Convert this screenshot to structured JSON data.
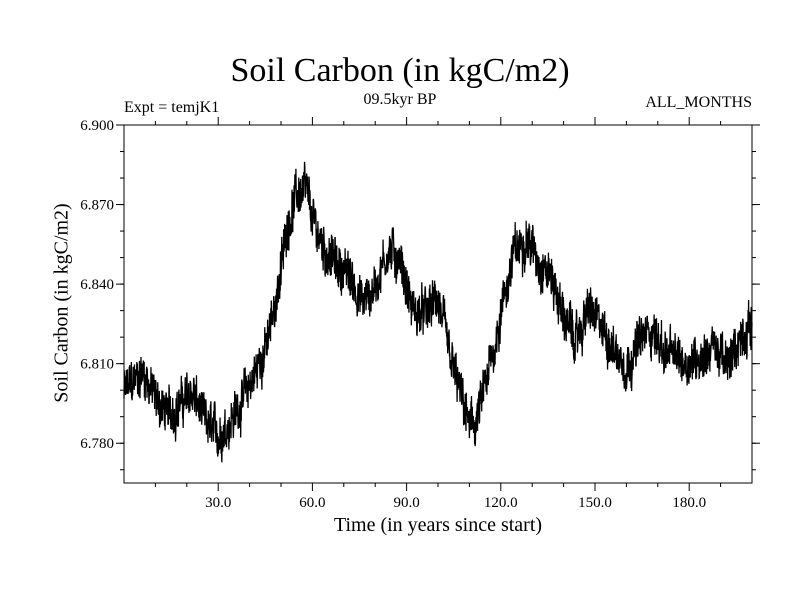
{
  "chart_data": {
    "type": "line",
    "title": "Soil Carbon (in kgC/m2)",
    "subtitle": "09.5kyr BP",
    "left_label": "Expt = temjK1",
    "right_label": "ALL_MONTHS",
    "xlabel": "Time (in years since start)",
    "ylabel": "Soil Carbon (in kgC/m2)",
    "xlim": [
      0,
      200
    ],
    "ylim": [
      6.765,
      6.9
    ],
    "xticks": [
      30,
      60,
      90,
      120,
      150,
      180
    ],
    "xtick_labels": [
      "30.0",
      "60.0",
      "90.0",
      "120.0",
      "150.0",
      "180.0"
    ],
    "yticks": [
      6.78,
      6.81,
      6.84,
      6.87,
      6.9
    ],
    "ytick_labels": [
      "6.780",
      "6.810",
      "6.840",
      "6.870",
      "6.900"
    ],
    "grid": false,
    "series": [
      {
        "name": "Soil Carbon",
        "color": "#000000",
        "noise_amplitude": 0.009,
        "x": [
          0,
          3,
          6,
          10,
          14,
          18,
          22,
          26,
          30,
          34,
          38,
          42,
          46,
          50,
          52,
          55,
          58,
          60,
          64,
          68,
          72,
          76,
          80,
          84,
          88,
          90,
          92,
          96,
          100,
          104,
          108,
          110,
          112,
          116,
          120,
          124,
          128,
          132,
          136,
          140,
          144,
          148,
          152,
          156,
          160,
          164,
          168,
          172,
          176,
          180,
          184,
          188,
          192,
          196,
          200
        ],
        "y": [
          6.799,
          6.803,
          6.807,
          6.797,
          6.791,
          6.795,
          6.799,
          6.787,
          6.783,
          6.789,
          6.797,
          6.807,
          6.819,
          6.845,
          6.863,
          6.874,
          6.875,
          6.864,
          6.853,
          6.847,
          6.843,
          6.833,
          6.839,
          6.853,
          6.849,
          6.839,
          6.829,
          6.829,
          6.834,
          6.811,
          6.795,
          6.786,
          6.787,
          6.805,
          6.829,
          6.851,
          6.858,
          6.849,
          6.843,
          6.828,
          6.818,
          6.831,
          6.823,
          6.816,
          6.809,
          6.818,
          6.823,
          6.815,
          6.812,
          6.811,
          6.813,
          6.817,
          6.809,
          6.819,
          6.825
        ]
      }
    ]
  }
}
